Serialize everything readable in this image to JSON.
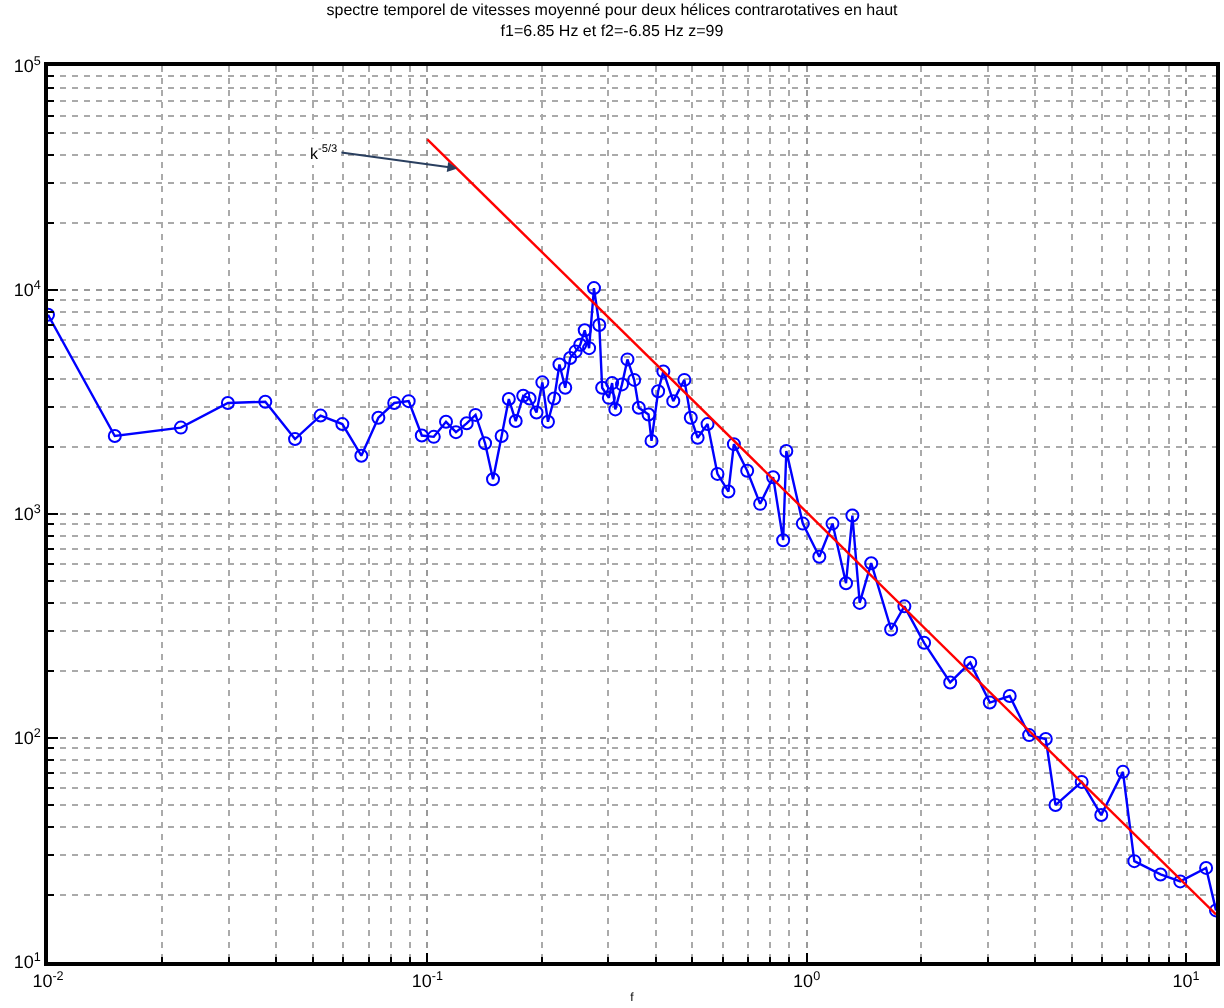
{
  "chart_data": {
    "type": "line",
    "title": "spectre temporel de vitesses moyenné pour deux hélices contrarotatives en haut",
    "subtitle": "f1=6.85 Hz et f2=-6.85 Hz z=99",
    "xlabel": "f",
    "log": "xy",
    "grid": true,
    "xlim": [
      0.01,
      12
    ],
    "ylim": [
      10,
      100000
    ],
    "xticks": [
      {
        "value": 0.01,
        "label": "10$^{-2}$"
      },
      {
        "value": 0.1,
        "label": "10$^{-1}$"
      },
      {
        "value": 1,
        "label": "10$^{0}$"
      },
      {
        "value": 10,
        "label": "10$^{1}$"
      }
    ],
    "yticks": [
      {
        "value": 10,
        "label": "10$^{1}$"
      },
      {
        "value": 100,
        "label": "10$^{2}$"
      },
      {
        "value": 1000,
        "label": "10$^{3}$"
      },
      {
        "value": 10000,
        "label": "10$^{4}$"
      },
      {
        "value": 100000,
        "label": "10$^{5}$"
      }
    ],
    "series": [
      {
        "color": "#0000ff",
        "marker": "circle",
        "x": [
          0.01,
          0.015,
          0.0224,
          0.0298,
          0.0374,
          0.0448,
          0.0523,
          0.0597,
          0.067,
          0.0743,
          0.0818,
          0.0893,
          0.0967,
          0.104,
          0.112,
          0.119,
          0.127,
          0.134,
          0.142,
          0.149,
          0.157,
          0.164,
          0.171,
          0.179,
          0.186,
          0.194,
          0.201,
          0.208,
          0.216,
          0.223,
          0.231,
          0.238,
          0.246,
          0.253,
          0.26,
          0.267,
          0.275,
          0.284,
          0.289,
          0.301,
          0.307,
          0.313,
          0.326,
          0.337,
          0.351,
          0.361,
          0.383,
          0.39,
          0.406,
          0.419,
          0.445,
          0.476,
          0.495,
          0.516,
          0.548,
          0.582,
          0.622,
          0.643,
          0.697,
          0.754,
          0.816,
          0.867,
          0.884,
          0.977,
          1.08,
          1.17,
          1.27,
          1.32,
          1.38,
          1.48,
          1.67,
          1.81,
          2.04,
          2.39,
          2.7,
          3.04,
          3.43,
          3.86,
          4.27,
          4.53,
          5.31,
          5.98,
          6.82,
          7.31,
          8.57,
          9.66,
          11.3,
          12
        ],
        "values": [
          7750,
          2230,
          2430,
          3130,
          3170,
          2160,
          2750,
          2520,
          1820,
          2690,
          3130,
          3190,
          2240,
          2210,
          2580,
          2320,
          2540,
          2770,
          2070,
          1430,
          2230,
          3260,
          2600,
          3370,
          3280,
          2840,
          3870,
          2580,
          3280,
          4650,
          3660,
          4970,
          5320,
          5700,
          6610,
          5500,
          10200,
          6980,
          3660,
          3300,
          3840,
          2930,
          3790,
          4900,
          3970,
          2980,
          2780,
          2120,
          3530,
          4330,
          3190,
          3970,
          2690,
          2190,
          2520,
          1510,
          1260,
          2050,
          1560,
          1110,
          1460,
          764,
          1910,
          906,
          644,
          906,
          491,
          984,
          401,
          603,
          305,
          387,
          266,
          177,
          217,
          144,
          154,
          103,
          99,
          50.2,
          63.7,
          45.3,
          70.6,
          28.2,
          24.6,
          22.9,
          26.3,
          17
        ]
      },
      {
        "color": "#ff0000",
        "marker": "none",
        "x": [
          0.1,
          12
        ],
        "values": [
          47000,
          16.3
        ]
      }
    ],
    "annotations": [
      {
        "text": "k$^{-5/3}$",
        "x": 0.12,
        "y": 34900
      }
    ]
  }
}
